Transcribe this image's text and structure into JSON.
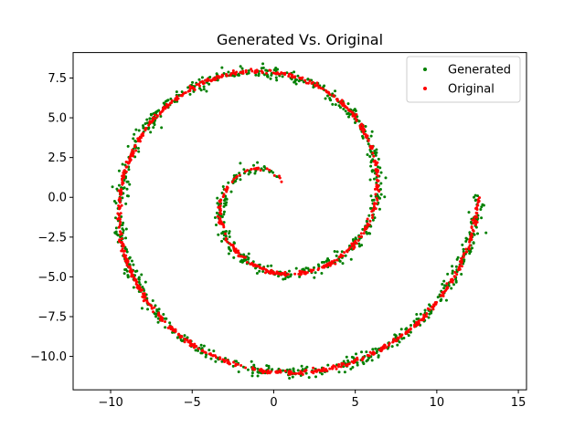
{
  "chart_data": {
    "type": "scatter",
    "title": "Generated Vs. Original",
    "xlabel": "",
    "ylabel": "",
    "xlim": [
      -12.3,
      15.5
    ],
    "ylim": [
      -12.1,
      9.1
    ],
    "xticks": [
      -10,
      -5,
      0,
      5,
      10,
      15
    ],
    "yticks": [
      -10.0,
      -7.5,
      -5.0,
      -2.5,
      0.0,
      2.5,
      5.0,
      7.5
    ],
    "grid": false,
    "legend_position": "upper-right",
    "series": [
      {
        "name": "Generated",
        "color": "#008000",
        "marker": "dot",
        "description": "Noisy samples scattered around an Archimedean spiral",
        "spiral": {
          "theta_start_turns": 0.08,
          "theta_end_turns": 2.0,
          "radius_per_radian": 1.0,
          "noise": 0.2,
          "count": 1000,
          "seed": 7
        }
      },
      {
        "name": "Original",
        "color": "#ff0000",
        "marker": "dot",
        "description": "Archimedean spiral r = theta",
        "spiral": {
          "theta_start_turns": 0.08,
          "theta_end_turns": 2.0,
          "radius_per_radian": 1.0,
          "noise": 0.06,
          "count": 1000,
          "seed": 3
        }
      }
    ]
  }
}
